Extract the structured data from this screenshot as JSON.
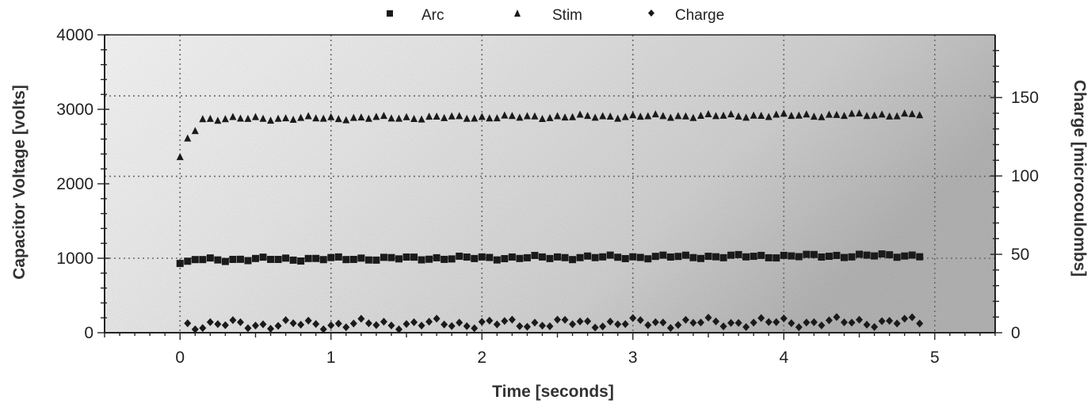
{
  "chart_data": {
    "type": "scatter",
    "xlabel": "Time [seconds]",
    "ylabel_left": "Capacitor Voltage [volts]",
    "ylabel_right": "Charge [microcoulombs]",
    "xlim": [
      -0.5,
      5.4
    ],
    "ylim_left": [
      0,
      4000
    ],
    "ylim_right": [
      0,
      190
    ],
    "x_ticks": [
      "0",
      "1",
      "2",
      "3",
      "4",
      "5"
    ],
    "y_left_ticks": [
      "0",
      "1000",
      "2000",
      "3000",
      "4000"
    ],
    "y_right_ticks": [
      "0",
      "50",
      "100",
      "150"
    ],
    "grid_v": [
      0,
      1,
      2,
      3,
      4,
      5
    ],
    "grid_h_left": [
      1000,
      2100,
      3180
    ],
    "legend_position": "top",
    "series": [
      {
        "name": "Arc",
        "marker": "square",
        "axis": "left",
        "start": 0.0,
        "step": 0.05,
        "base": 980,
        "trend": 60,
        "first_values": [
          930,
          960
        ]
      },
      {
        "name": "Stim",
        "marker": "triangle",
        "axis": "left",
        "start": 0.0,
        "step": 0.05,
        "base": 2870,
        "trend": 60,
        "first_values": [
          2360,
          2610,
          2710
        ]
      },
      {
        "name": "Charge",
        "marker": "diamond",
        "axis": "right",
        "start": 0.05,
        "step": 0.05,
        "base": 5,
        "trend": 2,
        "first_values": [
          6
        ]
      }
    ],
    "t_end": 4.92
  },
  "colors": {
    "marker": "#1a1a1a",
    "plot_bg_light": "#f4f4f4",
    "plot_bg_dark": "#bdbdbd",
    "grid": "#6a6a6a",
    "axis": "#222222"
  }
}
